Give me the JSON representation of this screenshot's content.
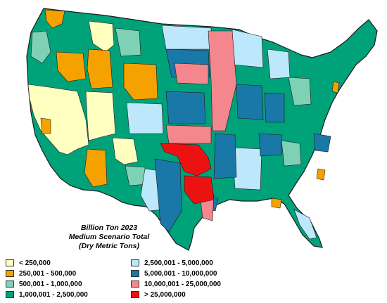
{
  "map": {
    "title_lines": [
      "Billion Ton 2023",
      "Medium Scenario Total",
      "(Dry Metric Tons)"
    ],
    "colors": {
      "c1": "#ffffc0",
      "c2": "#f5a200",
      "c3": "#7fd1b5",
      "c4": "#00a27a",
      "c5": "#bde8fb",
      "c6": "#1a78a8",
      "c7": "#f4878e",
      "c8": "#ee1111",
      "border": "#1a1a1a"
    },
    "legend": [
      {
        "label": "< 250,000",
        "color": "#ffffc0"
      },
      {
        "label": "250,001 - 500,000",
        "color": "#f5a200"
      },
      {
        "label": "500,001 - 1,000,000",
        "color": "#7fd1b5"
      },
      {
        "label": "1,000,001 - 2,500,000",
        "color": "#00a27a"
      },
      {
        "label": "2,500,001 - 5,000,000",
        "color": "#bde8fb"
      },
      {
        "label": "5,000,001 - 10,000,000",
        "color": "#1a78a8"
      },
      {
        "label": "10,000,001 - 25,000,000",
        "color": "#f4878e"
      },
      {
        "label": "> 25,000,000",
        "color": "#ee1111"
      }
    ]
  }
}
